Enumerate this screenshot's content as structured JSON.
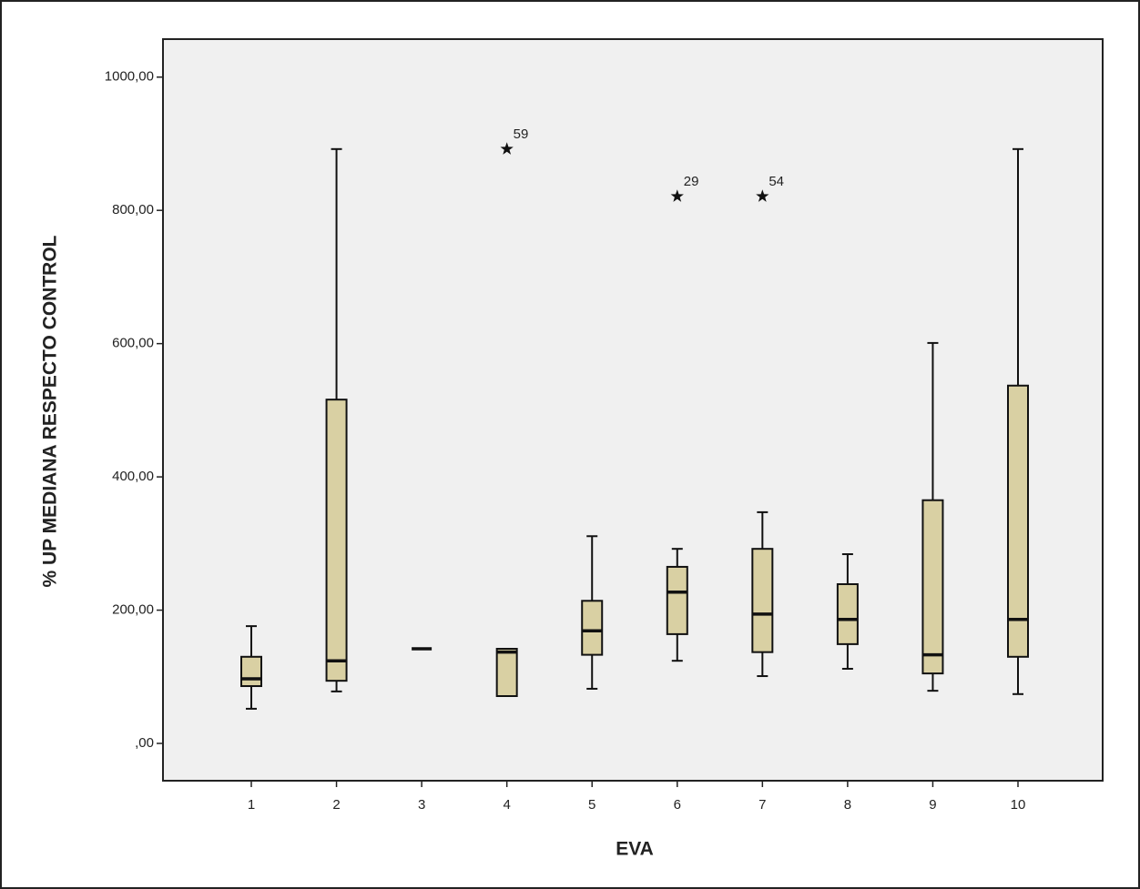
{
  "chart_data": {
    "type": "box",
    "x_label": "EVA",
    "y_label": "% UP MEDIANA RESPECTO CONTROL",
    "categories": [
      "1",
      "2",
      "3",
      "4",
      "5",
      "6",
      "7",
      "8",
      "9",
      "10"
    ],
    "min": [
      52,
      78,
      142,
      71,
      82,
      124,
      101,
      112,
      79,
      74
    ],
    "q1": [
      86,
      94,
      142,
      71,
      133,
      164,
      137,
      149,
      105,
      130
    ],
    "median": [
      97,
      124,
      142,
      137,
      169,
      227,
      194,
      186,
      133,
      186
    ],
    "q3": [
      130,
      516,
      142,
      142,
      214,
      265,
      292,
      239,
      365,
      537
    ],
    "max": [
      176,
      892,
      142,
      142,
      311,
      292,
      347,
      284,
      601,
      892
    ],
    "outliers": [
      {
        "category": "4",
        "value": 892,
        "label": "59"
      },
      {
        "category": "6",
        "value": 821,
        "label": "29"
      },
      {
        "category": "7",
        "value": 821,
        "label": "54"
      }
    ],
    "color": "#d9d0a3",
    "ylim": [
      -56,
      1057
    ],
    "yticks": [
      {
        "value": 0,
        "label": ",00"
      },
      {
        "value": 200,
        "label": "200,00"
      },
      {
        "value": 400,
        "label": "400,00"
      },
      {
        "value": 600,
        "label": "600,00"
      },
      {
        "value": 800,
        "label": "800,00"
      },
      {
        "value": 1000,
        "label": "1000,00"
      }
    ]
  }
}
